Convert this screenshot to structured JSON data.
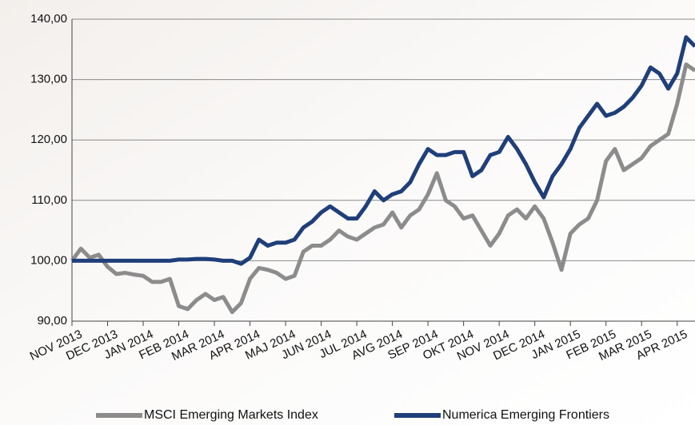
{
  "chart_data": {
    "type": "line",
    "x": [
      0,
      0.25,
      0.5,
      0.75,
      1,
      1.25,
      1.5,
      1.75,
      2,
      2.25,
      2.5,
      2.75,
      3,
      3.25,
      3.5,
      3.75,
      4,
      4.25,
      4.5,
      4.75,
      5,
      5.25,
      5.5,
      5.75,
      6,
      6.25,
      6.5,
      6.75,
      7,
      7.25,
      7.5,
      7.75,
      8,
      8.25,
      8.5,
      8.75,
      9,
      9.25,
      9.5,
      9.75,
      10,
      10.25,
      10.5,
      10.75,
      11,
      11.25,
      11.5,
      11.75,
      12,
      12.25,
      12.5,
      12.75,
      13,
      13.25,
      13.5,
      13.75,
      14,
      14.25,
      14.5,
      14.75,
      15,
      15.25,
      15.5,
      15.75,
      16,
      16.25,
      16.5,
      16.75,
      17,
      17.25,
      17.5
    ],
    "xlim": [
      0,
      17.5
    ],
    "xticks": [
      {
        "value": 0,
        "label": "NOV 2013"
      },
      {
        "value": 1,
        "label": "DEC 2013"
      },
      {
        "value": 2,
        "label": "JAN 2014"
      },
      {
        "value": 3,
        "label": "FEB 2014"
      },
      {
        "value": 4,
        "label": "MAR 2014"
      },
      {
        "value": 5,
        "label": "APR 2014"
      },
      {
        "value": 6,
        "label": "MAJ 2014"
      },
      {
        "value": 7,
        "label": "JUN 2014"
      },
      {
        "value": 8,
        "label": "JUL 2014"
      },
      {
        "value": 9,
        "label": "AVG 2014"
      },
      {
        "value": 10,
        "label": "SEP 2014"
      },
      {
        "value": 11,
        "label": "OKT 2014"
      },
      {
        "value": 12,
        "label": "NOV 2014"
      },
      {
        "value": 13,
        "label": "DEC 2014"
      },
      {
        "value": 14,
        "label": "JAN 2015"
      },
      {
        "value": 15,
        "label": "FEB 2015"
      },
      {
        "value": 16,
        "label": "MAR 2015"
      },
      {
        "value": 17,
        "label": "APR 2015"
      }
    ],
    "ylim": [
      90,
      140
    ],
    "yticks": [
      {
        "value": 90,
        "label": "90,00"
      },
      {
        "value": 100,
        "label": "100,00"
      },
      {
        "value": 110,
        "label": "110,00"
      },
      {
        "value": 120,
        "label": "120,00"
      },
      {
        "value": 130,
        "label": "130,00"
      },
      {
        "value": 140,
        "label": "140,00"
      }
    ],
    "grid": true,
    "legend": "bottom",
    "series": [
      {
        "name": "MSCI Emerging Markets Index",
        "color": "#8c8c8c",
        "values": [
          100,
          102,
          100.5,
          101,
          99,
          97.8,
          98,
          97.7,
          97.5,
          96.5,
          96.5,
          97,
          92.5,
          92,
          93.5,
          94.5,
          93.5,
          94,
          91.5,
          93,
          97,
          98.8,
          98.5,
          98,
          97,
          97.5,
          101.5,
          102.5,
          102.5,
          103.5,
          105,
          104,
          103.5,
          104.5,
          105.5,
          106,
          108,
          105.5,
          107.5,
          108.5,
          111,
          114.5,
          110,
          109,
          107,
          107.5,
          105,
          102.5,
          104.5,
          107.5,
          108.5,
          107,
          109,
          107,
          103,
          98.5,
          104.5,
          106,
          107,
          110,
          116.5,
          118.5,
          115,
          116,
          117,
          119,
          120,
          121,
          126,
          132.5,
          131.5
        ]
      },
      {
        "name": "Numerica Emerging Frontiers",
        "color": "#1f3f7a",
        "values": [
          100,
          100,
          100,
          100,
          100,
          100,
          100,
          100,
          100,
          100,
          100,
          100,
          100.2,
          100.2,
          100.3,
          100.3,
          100.2,
          100,
          100,
          99.5,
          100.5,
          103.5,
          102.5,
          103,
          103,
          103.5,
          105.5,
          106.5,
          108,
          109,
          108,
          107,
          107,
          109,
          111.5,
          110,
          111,
          111.5,
          113,
          116,
          118.5,
          117.5,
          117.5,
          118,
          118,
          114,
          115,
          117.5,
          118,
          120.5,
          118.5,
          116,
          113,
          110.5,
          114,
          116,
          118.5,
          122,
          124,
          126,
          124,
          124.5,
          125.5,
          127,
          129,
          132,
          131,
          128.5,
          131,
          137,
          135.5
        ]
      }
    ]
  }
}
